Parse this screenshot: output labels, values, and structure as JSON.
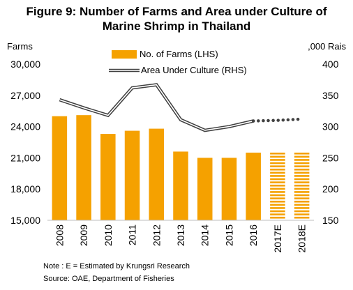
{
  "chart_data": {
    "type": "bar",
    "title_line1": "Figure 9: Number of Farms and Area under Culture of",
    "title_line2": "Marine Shrimp in Thailand",
    "left_axis_label": "Farms",
    "right_axis_label": ",000 Rais",
    "categories": [
      "2008",
      "2009",
      "2010",
      "2011",
      "2012",
      "2013",
      "2014",
      "2015",
      "2016",
      "2017E",
      "2018E"
    ],
    "left_ylim": [
      15000,
      30000
    ],
    "left_ticks": [
      "15,000",
      "18,000",
      "21,000",
      "24,000",
      "27,000",
      "30,000"
    ],
    "right_ylim": [
      150,
      400
    ],
    "right_ticks": [
      "150",
      "200",
      "250",
      "300",
      "350",
      "400"
    ],
    "series": [
      {
        "name": "No. of Farms (LHS)",
        "axis": "left",
        "kind": "bar",
        "color": "#f5a100",
        "values": [
          25000,
          25100,
          23300,
          23600,
          23800,
          21600,
          21000,
          21000,
          21500,
          21500,
          21500
        ],
        "estimated": [
          false,
          false,
          false,
          false,
          false,
          false,
          false,
          false,
          false,
          true,
          true
        ]
      },
      {
        "name": "Area Under Culture (RHS)",
        "axis": "right",
        "kind": "line",
        "color": "#404040",
        "values": [
          343,
          330,
          318,
          362,
          367,
          311,
          294,
          300,
          309,
          310,
          312
        ],
        "estimated": [
          false,
          false,
          false,
          false,
          false,
          false,
          false,
          false,
          false,
          true,
          true
        ]
      }
    ],
    "legend_position": "top",
    "grid": false
  },
  "notes": {
    "note": "Note : E = Estimated by Krungsri Research",
    "source": "Source: OAE, Department of Fisheries"
  }
}
